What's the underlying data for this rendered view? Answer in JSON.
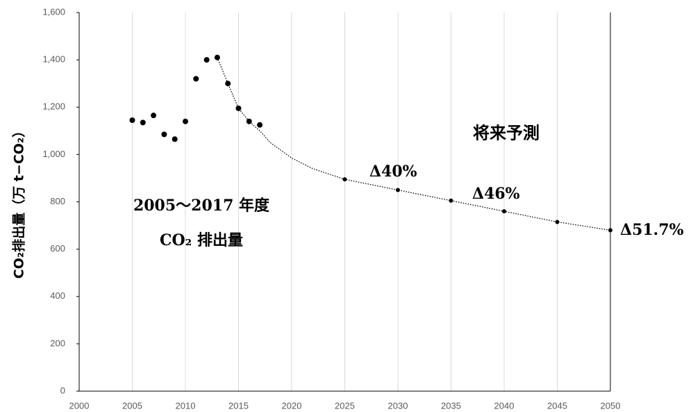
{
  "chart_data": {
    "type": "scatter",
    "ylabel": "CO₂排出量（万 t−CO₂）",
    "series": [
      {
        "color": "#000000",
        "marker": "large",
        "line": "none",
        "x": [
          2005,
          2006,
          2007,
          2008,
          2009,
          2010,
          2011,
          2012,
          2013,
          2014,
          2015,
          2016,
          2017
        ],
        "values": [
          1145,
          1135,
          1165,
          1085,
          1065,
          1140,
          1320,
          1400,
          1410,
          1300,
          1195,
          1140,
          1125
        ]
      },
      {
        "color": "#000000",
        "marker": "none",
        "line": "dotted",
        "x": [
          2013,
          2014,
          2015,
          2016,
          2017,
          2018,
          2020,
          2022,
          2025,
          2030,
          2035,
          2040,
          2045,
          2050
        ],
        "values": [
          1410,
          1300,
          1195,
          1140,
          1100,
          1050,
          985,
          940,
          895,
          850,
          805,
          760,
          715,
          680
        ]
      },
      {
        "color": "#000000",
        "marker": "small",
        "line": "none",
        "x": [
          2025,
          2030,
          2035,
          2040,
          2045,
          2050
        ],
        "values": [
          895,
          850,
          805,
          760,
          715,
          680
        ]
      }
    ],
    "xlim": [
      2000,
      2050
    ],
    "xticks": [
      2000,
      2005,
      2010,
      2015,
      2020,
      2025,
      2030,
      2035,
      2040,
      2045,
      2050
    ],
    "ylim": [
      0,
      1600
    ],
    "yticks": [
      0,
      200,
      400,
      600,
      800,
      {
        "value": 1000,
        "label": "1,000"
      },
      {
        "value": 1200,
        "label": "1,200"
      },
      {
        "value": 1400,
        "label": "1,400"
      },
      {
        "value": 1600,
        "label": "1,600"
      }
    ],
    "grid": "x",
    "annotations": [
      "将来予測",
      "Δ40%",
      "Δ46%",
      "Δ51.7%",
      "2005～2017 年度",
      "CO₂ 排出量"
    ]
  }
}
